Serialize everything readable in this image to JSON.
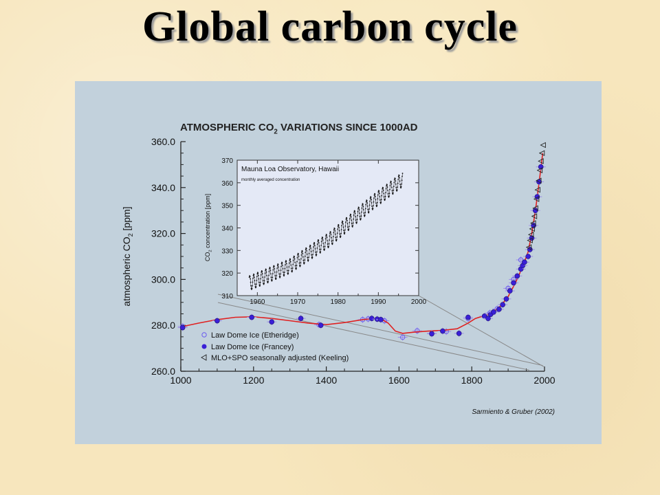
{
  "slide": {
    "title": "Global carbon cycle"
  },
  "chart_data": [
    {
      "type": "scatter",
      "title_pre": "ATMOSPHERIC CO",
      "title_sub": "2",
      "title_post": " VARIATIONS SINCE 1000AD",
      "ylabel_pre": "atmospheric CO",
      "ylabel_sub": "2",
      "ylabel_post": " [ppm]",
      "xlim": [
        1000,
        2000
      ],
      "ylim": [
        260,
        360
      ],
      "xticks": [
        "1000",
        "1200",
        "1400",
        "1600",
        "1800",
        "2000"
      ],
      "yticks": [
        "260.0",
        "280.0",
        "300.0",
        "320.0",
        "340.0",
        "360.0"
      ],
      "credit": "Sarmiento & Gruber (2002)",
      "legend_position": "bottom-left",
      "colors": {
        "fit_line": "#e02020",
        "francey": "#3a1fd6",
        "etheridge": "#6a5af0",
        "keeling": "#222222",
        "errorbar": "#9c8ce8"
      },
      "series": [
        {
          "name": "Law Dome Ice (Etheridge)",
          "marker": "open-circle",
          "x": [
            1005,
            1380,
            1500,
            1515,
            1560,
            1610,
            1650,
            1690,
            1730,
            1790,
            1850,
            1870,
            1900,
            1915,
            1935
          ],
          "y": [
            279.5,
            280.3,
            282.5,
            282.8,
            282.0,
            274.8,
            277.6,
            276.5,
            277.3,
            282.9,
            285.4,
            287.2,
            296.1,
            300.0,
            308.5
          ]
        },
        {
          "name": "Law Dome Ice (Francey)",
          "marker": "filled-circle",
          "x": [
            1005,
            1100,
            1195,
            1250,
            1330,
            1385,
            1525,
            1540,
            1550,
            1690,
            1720,
            1765,
            1790,
            1835,
            1845,
            1852,
            1860,
            1875,
            1885,
            1895,
            1905,
            1915,
            1925,
            1935,
            1940,
            1945,
            1955,
            1960,
            1965,
            1970,
            1975,
            1980,
            1985,
            1990
          ],
          "y": [
            279.0,
            282.0,
            283.5,
            281.5,
            283.0,
            280.0,
            283.0,
            282.7,
            282.5,
            276.3,
            277.5,
            276.5,
            283.5,
            284.0,
            283.0,
            284.8,
            285.8,
            287.0,
            289.0,
            291.5,
            295.0,
            298.5,
            301.5,
            304.5,
            306.0,
            307.5,
            310.0,
            313.0,
            318.0,
            323.5,
            330.0,
            336.0,
            342.5,
            349.0
          ]
        },
        {
          "name": "MLO+SPO seasonally adjusted (Keeling)",
          "marker": "open-triangle-left",
          "x": [
            1958,
            1961,
            1964,
            1967,
            1970,
            1973,
            1976,
            1979,
            1982,
            1985,
            1988,
            1991,
            1994,
            1997
          ],
          "y": [
            314.0,
            317.0,
            319.5,
            322.0,
            324.5,
            327.5,
            331.0,
            335.0,
            339.0,
            343.0,
            347.5,
            351.5,
            355.0,
            358.5
          ]
        }
      ],
      "fit_line": {
        "x": [
          1000,
          1050,
          1100,
          1150,
          1200,
          1250,
          1300,
          1350,
          1400,
          1450,
          1500,
          1530,
          1550,
          1570,
          1590,
          1610,
          1640,
          1680,
          1720,
          1760,
          1790,
          1810,
          1840,
          1860,
          1880,
          1900,
          1920,
          1940,
          1955,
          1965,
          1975,
          1985,
          1995
        ],
        "y": [
          279.3,
          281.0,
          282.5,
          283.5,
          283.7,
          283.0,
          282.0,
          281.0,
          280.3,
          281.2,
          282.5,
          283.0,
          282.8,
          281.0,
          277.5,
          276.5,
          277.0,
          277.5,
          277.8,
          278.5,
          281.0,
          283.0,
          284.5,
          286.0,
          288.5,
          292.5,
          298.5,
          305.5,
          312.0,
          320.0,
          330.0,
          342.0,
          355.0
        ]
      }
    },
    {
      "type": "scatter",
      "title": "Mauna Loa Observatory, Hawaii",
      "subtitle": "monthly averaged concentration",
      "ylabel_pre": "CO",
      "ylabel_sub": "2",
      "ylabel_post": " concentration [ppm]",
      "xlim": [
        1955,
        2000
      ],
      "ylim": [
        310,
        370
      ],
      "xticks": [
        "1960",
        "1970",
        "1980",
        "1990",
        "2000"
      ],
      "yticks": [
        "310",
        "320",
        "330",
        "340",
        "350",
        "360",
        "370"
      ],
      "trend": {
        "x": [
          1958,
          1968,
          1978,
          1988,
          1996
        ],
        "y": [
          315.5,
          323.0,
          335.0,
          350.5,
          361.5
        ]
      },
      "seasonal_amplitude_ppm": 3.2,
      "x_range": [
        1958,
        1996
      ],
      "marker": "small-dot",
      "color": "#111111"
    }
  ]
}
